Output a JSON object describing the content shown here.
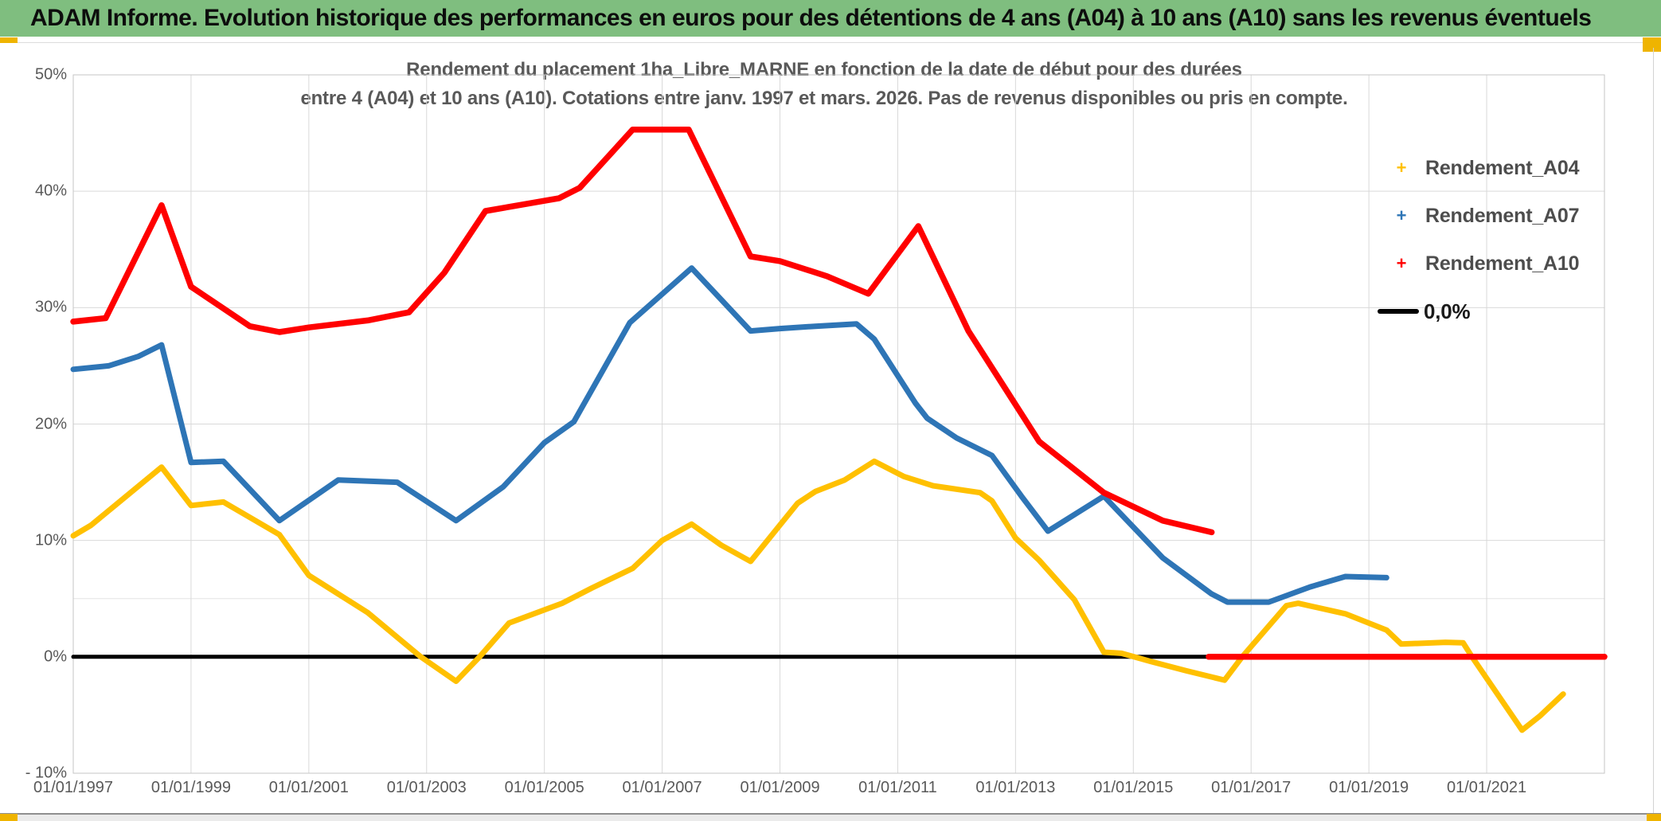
{
  "header": {
    "title": "ADAM Informe. Evolution historique des performances en euros pour des détentions de 4 ans (A04) à 10 ans (A10) sans les revenus éventuels"
  },
  "chart": {
    "title_line1": "Rendement du placement 1ha_Libre_MARNE en fonction de la date de début pour des durées",
    "title_line2": "entre 4 (A04) et 10 ans (A10). Cotations entre janv. 1997 et mars. 2026. Pas de revenus disponibles ou pris en compte."
  },
  "legend": {
    "items": [
      {
        "label": "Rendement_A04",
        "marker": "plus-marker",
        "color": "#FFC000"
      },
      {
        "label": "Rendement_A07",
        "marker": "plus-marker",
        "color": "#2E75B6"
      },
      {
        "label": "Rendement_A10",
        "marker": "plus-marker",
        "color": "#FF0000"
      },
      {
        "label": "0,0%",
        "marker": "line-swatch",
        "color": "#000000"
      }
    ]
  },
  "chart_data": {
    "type": "line",
    "title": "Rendement du placement 1ha_Libre_MARNE en fonction de la date de début pour des durées entre 4 (A04) et 10 ans (A10). Cotations entre janv. 1997 et mars. 2026. Pas de revenus disponibles ou pris en compte.",
    "x_axis": {
      "tick_labels": [
        "01/01/1997",
        "01/01/1999",
        "01/01/2001",
        "01/01/2003",
        "01/01/2005",
        "01/01/2007",
        "01/01/2009",
        "01/01/2011",
        "01/01/2013",
        "01/01/2015",
        "01/01/2017",
        "01/01/2019",
        "01/01/2021"
      ],
      "tick_years": [
        1997,
        1999,
        2001,
        2003,
        2005,
        2007,
        2009,
        2011,
        2013,
        2015,
        2017,
        2019,
        2021
      ],
      "range_years": [
        1997.0,
        2023.0
      ],
      "gridlines": "on"
    },
    "y_axis": {
      "tick_labels": [
        "50%",
        "40%",
        "30%",
        "20%",
        "10%",
        "0%",
        "- 10%"
      ],
      "tick_values": [
        50,
        40,
        30,
        20,
        10,
        0,
        -10
      ],
      "unit": "percent",
      "range": [
        -10,
        50
      ],
      "minor_gridline_value": 5,
      "gridlines": "on"
    },
    "legend_position": "right",
    "series": [
      {
        "name": "Rendement_A04",
        "color": "#FFC000",
        "marker": "plus",
        "segments": [
          [
            [
              1997.0,
              10.4
            ],
            [
              1997.3,
              11.3
            ],
            [
              1998.5,
              16.3
            ],
            [
              1999.0,
              13.0
            ],
            [
              1999.55,
              13.3
            ],
            [
              2000.5,
              10.5
            ],
            [
              2001.0,
              7.0
            ],
            [
              2002.0,
              3.8
            ],
            [
              2002.9,
              0.0
            ],
            [
              2003.5,
              -2.1
            ],
            [
              2003.9,
              0.0
            ],
            [
              2004.4,
              2.9
            ],
            [
              2005.3,
              4.6
            ],
            [
              2005.8,
              5.9
            ],
            [
              2006.5,
              7.6
            ],
            [
              2007.0,
              10.0
            ],
            [
              2007.5,
              11.4
            ],
            [
              2008.0,
              9.6
            ],
            [
              2008.5,
              8.2
            ],
            [
              2009.3,
              13.2
            ],
            [
              2009.6,
              14.2
            ],
            [
              2010.1,
              15.2
            ],
            [
              2010.6,
              16.8
            ],
            [
              2011.1,
              15.5
            ],
            [
              2011.6,
              14.7
            ],
            [
              2012.4,
              14.1
            ],
            [
              2012.6,
              13.4
            ],
            [
              2013.0,
              10.2
            ],
            [
              2013.4,
              8.3
            ],
            [
              2014.0,
              4.9
            ],
            [
              2014.5,
              0.4
            ],
            [
              2014.8,
              0.3
            ],
            [
              2015.3,
              -0.4
            ],
            [
              2015.9,
              -1.2
            ],
            [
              2016.55,
              -2.0
            ],
            [
              2016.85,
              0.0
            ],
            [
              2017.6,
              4.4
            ],
            [
              2017.8,
              4.6
            ],
            [
              2018.6,
              3.7
            ],
            [
              2019.3,
              2.3
            ],
            [
              2019.55,
              1.1
            ],
            [
              2020.3,
              1.25
            ],
            [
              2020.6,
              1.2
            ],
            [
              2020.75,
              0.0
            ],
            [
              2021.6,
              -6.3
            ],
            [
              2021.9,
              -5.1
            ],
            [
              2022.3,
              -3.2
            ]
          ]
        ]
      },
      {
        "name": "Rendement_A07",
        "color": "#2E75B6",
        "marker": "plus",
        "segments": [
          [
            [
              1997.0,
              24.7
            ],
            [
              1997.6,
              25.0
            ],
            [
              1998.1,
              25.8
            ],
            [
              1998.5,
              26.8
            ],
            [
              1999.0,
              16.7
            ],
            [
              1999.55,
              16.8
            ],
            [
              2000.5,
              11.7
            ],
            [
              2001.5,
              15.2
            ],
            [
              2002.5,
              15.0
            ],
            [
              2003.5,
              11.7
            ],
            [
              2004.3,
              14.6
            ],
            [
              2005.0,
              18.4
            ],
            [
              2005.5,
              20.2
            ],
            [
              2006.45,
              28.7
            ],
            [
              2007.5,
              33.4
            ],
            [
              2008.5,
              28.0
            ],
            [
              2009.0,
              28.2
            ],
            [
              2009.6,
              28.4
            ],
            [
              2010.3,
              28.6
            ],
            [
              2010.6,
              27.3
            ],
            [
              2011.3,
              21.8
            ],
            [
              2011.5,
              20.5
            ],
            [
              2012.0,
              18.8
            ],
            [
              2012.6,
              17.3
            ],
            [
              2013.1,
              13.8
            ],
            [
              2013.55,
              10.8
            ],
            [
              2014.5,
              13.8
            ],
            [
              2015.5,
              8.5
            ],
            [
              2016.33,
              5.4
            ],
            [
              2016.6,
              4.7
            ],
            [
              2017.3,
              4.7
            ],
            [
              2018.0,
              6.0
            ],
            [
              2018.6,
              6.9
            ],
            [
              2019.3,
              6.8
            ]
          ]
        ]
      },
      {
        "name": "Rendement_A10",
        "color": "#FF0000",
        "marker": "plus",
        "segments": [
          [
            [
              1997.0,
              28.8
            ],
            [
              1997.55,
              29.1
            ],
            [
              1998.5,
              38.8
            ],
            [
              1999.0,
              31.8
            ],
            [
              2000.0,
              28.4
            ],
            [
              2000.5,
              27.9
            ],
            [
              2001.0,
              28.3
            ],
            [
              2002.0,
              28.9
            ],
            [
              2002.7,
              29.6
            ],
            [
              2003.3,
              33.0
            ],
            [
              2004.0,
              38.3
            ],
            [
              2005.25,
              39.4
            ],
            [
              2005.6,
              40.3
            ],
            [
              2006.5,
              45.3
            ],
            [
              2007.45,
              45.3
            ],
            [
              2008.5,
              34.4
            ],
            [
              2009.0,
              34.0
            ],
            [
              2009.8,
              32.7
            ],
            [
              2010.5,
              31.2
            ],
            [
              2011.35,
              37.0
            ],
            [
              2012.2,
              28.0
            ],
            [
              2013.4,
              18.5
            ],
            [
              2014.5,
              14.1
            ],
            [
              2015.5,
              11.7
            ],
            [
              2016.33,
              10.7
            ]
          ],
          [
            [
              2016.28,
              0.0
            ],
            [
              2023.0,
              0.0
            ]
          ]
        ]
      },
      {
        "name": "0,0%",
        "color": "#000000",
        "marker": "none",
        "segments": [
          [
            [
              1997.0,
              0.0
            ],
            [
              2023.0,
              0.0
            ]
          ]
        ]
      }
    ]
  },
  "colors": {
    "header_green": "#7FBE7F",
    "corner_gold": "#EFB400",
    "axis_text": "#595959",
    "gridline": "#D9D9D9",
    "minor_gridline": "#E4E4E4",
    "plot_border": "#C6C6C6",
    "series_a04": "#FFC000",
    "series_a07": "#2E75B6",
    "series_a10": "#FF0000",
    "zero_line": "#000000"
  }
}
